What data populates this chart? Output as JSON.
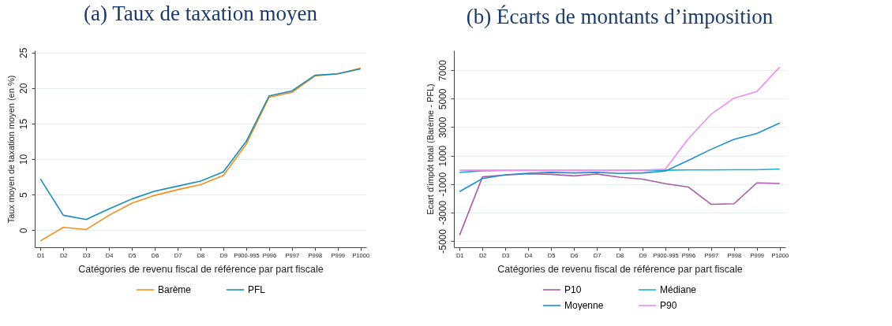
{
  "chart_data": [
    {
      "type": "line",
      "title": "(a) Taux de taxation moyen",
      "xlabel": "Catégories de revenu fiscal de référence par part fiscale",
      "ylabel": "Taux moyen de taxation moyen (en %)",
      "categories": [
        "D1",
        "D2",
        "D3",
        "D4",
        "D5",
        "D6",
        "D7",
        "D8",
        "D9",
        "P900-995",
        "P996",
        "P997",
        "P998",
        "P999",
        "P1000"
      ],
      "ylim": [
        -2.4,
        25.3
      ],
      "yticks": [
        0,
        5,
        10,
        15,
        20,
        25
      ],
      "grid": "y",
      "legend": "bottom",
      "marker": "none",
      "line_style": "solid",
      "series": [
        {
          "name": "Barème",
          "color": "#f28e1c",
          "values": [
            -1.5,
            0.4,
            0.1,
            2.1,
            3.8,
            4.9,
            5.7,
            6.4,
            7.7,
            12.1,
            18.7,
            19.4,
            21.7,
            22.0,
            22.8
          ]
        },
        {
          "name": "PFL",
          "color": "#1a8cbc",
          "values": [
            7.2,
            2.1,
            1.5,
            3.0,
            4.4,
            5.5,
            6.2,
            6.9,
            8.2,
            12.5,
            18.9,
            19.6,
            21.8,
            22.0,
            22.7
          ]
        }
      ]
    },
    {
      "type": "line",
      "title": "(b) Écarts de montants d’imposition",
      "xlabel": "Catégories de revenu fiscal de référence par part fiscale",
      "ylabel": "Ecart d'impôt total (Barème - PFL)",
      "categories": [
        "D1",
        "D2",
        "D3",
        "D4",
        "D5",
        "D6",
        "D7",
        "D8",
        "D9",
        "P900-995",
        "P996",
        "P997",
        "P998",
        "P999",
        "P1000"
      ],
      "ylim": [
        -5450,
        8400
      ],
      "yticks": [
        -5000,
        -3000,
        -1000,
        1000,
        3000,
        5000,
        7000
      ],
      "grid": "y",
      "legend": "bottom",
      "marker": "none",
      "line_style": "solid",
      "series": [
        {
          "name": "P10",
          "color": "#a85ca8",
          "values": [
            -4600,
            -500,
            -370,
            -280,
            -320,
            -430,
            -300,
            -520,
            -660,
            -980,
            -1210,
            -2430,
            -2390,
            -920,
            -960
          ]
        },
        {
          "name": "Médiane",
          "color": "#17b5d4",
          "values": [
            -180,
            -70,
            -50,
            -50,
            -50,
            -50,
            -50,
            -50,
            -50,
            -30,
            -10,
            -10,
            10,
            10,
            50
          ]
        },
        {
          "name": "Moyenne",
          "color": "#1f8fd0",
          "values": [
            -1530,
            -620,
            -350,
            -240,
            -180,
            -220,
            -180,
            -260,
            -220,
            -90,
            660,
            1440,
            2140,
            2560,
            3290
          ]
        },
        {
          "name": "P90",
          "color": "#ec8ef0",
          "values": [
            -30,
            -30,
            -30,
            -30,
            -30,
            -30,
            -30,
            -30,
            -30,
            50,
            2180,
            3910,
            5040,
            5510,
            7230
          ]
        }
      ]
    }
  ]
}
